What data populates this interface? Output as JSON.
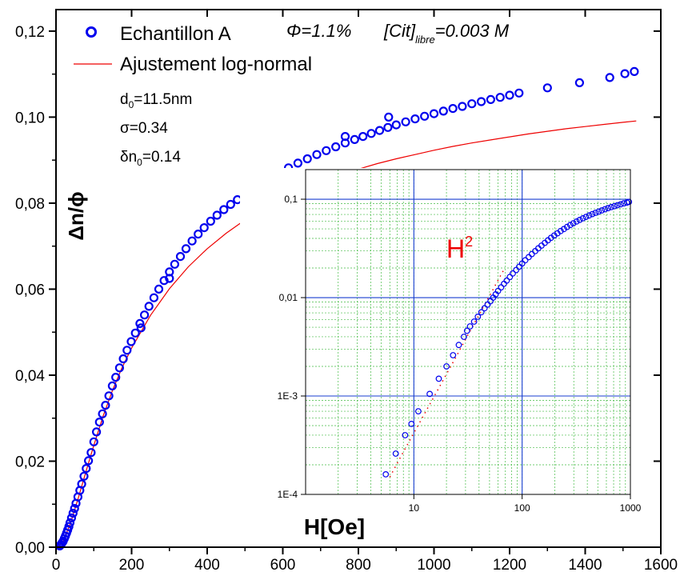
{
  "chart_data": [
    {
      "type": "scatter",
      "xlabel": "H[Oe]",
      "ylabel": "Δn/ϕ",
      "xlim": [
        0,
        1600
      ],
      "ylim": [
        0,
        0.125
      ],
      "x_ticks": [
        {
          "v": 0,
          "label": "0"
        },
        {
          "v": 200,
          "label": "200"
        },
        {
          "v": 400,
          "label": "400"
        },
        {
          "v": 600,
          "label": "600"
        },
        {
          "v": 800,
          "label": "800"
        },
        {
          "v": 1000,
          "label": "1000"
        },
        {
          "v": 1200,
          "label": "1200"
        },
        {
          "v": 1400,
          "label": "1400"
        },
        {
          "v": 1600,
          "label": "1600"
        }
      ],
      "y_ticks": [
        {
          "v": 0,
          "label": "0,00"
        },
        {
          "v": 0.02,
          "label": "0,02"
        },
        {
          "v": 0.04,
          "label": "0,04"
        },
        {
          "v": 0.06,
          "label": "0,06"
        },
        {
          "v": 0.08,
          "label": "0,08"
        },
        {
          "v": 0.1,
          "label": "0,10"
        },
        {
          "v": 0.12,
          "label": "0,12"
        }
      ],
      "legend": {
        "placement": "top-left",
        "entries": [
          "Echantillon A",
          "Ajustement log-normal"
        ]
      },
      "annotations": {
        "phi": "Φ=1.1%",
        "cit_prefix": "[Cit]",
        "cit_sub": "libre",
        "cit_suffix": "=0.003 M",
        "d0_main": "d",
        "d0_sub": "0",
        "d0_value": "=11.5nm",
        "sigma": "σ=0.34",
        "dn0_main": "δn",
        "dn0_sub": "0",
        "dn0_value": "=0.14"
      },
      "series": [
        {
          "name": "Echantillon A",
          "color": "#0000ee",
          "x": [
            10,
            13,
            16,
            19,
            22,
            25,
            28,
            31,
            34,
            37,
            41,
            45,
            49,
            53,
            58,
            63,
            68,
            74,
            80,
            86,
            93,
            100,
            107,
            115,
            123,
            131,
            140,
            149,
            158,
            168,
            178,
            188,
            199,
            210,
            222,
            234,
            246,
            259,
            272,
            286,
            300,
            314,
            329,
            344,
            360,
            376,
            392,
            409,
            426,
            444,
            462,
            480,
            499,
            518,
            540,
            565,
            590,
            615,
            640,
            665,
            690,
            715,
            740,
            765,
            790,
            812,
            834,
            856,
            878,
            900,
            925,
            950,
            975,
            1000,
            1025,
            1050,
            1075,
            1100,
            1125,
            1150,
            1175,
            1200,
            1225,
            1300,
            1385,
            1465,
            1505,
            1530,
            765,
            880,
            225,
            300
          ],
          "y": [
            0.0003,
            0.0006,
            0.001,
            0.0014,
            0.002,
            0.0026,
            0.0033,
            0.004,
            0.0048,
            0.0057,
            0.0068,
            0.0079,
            0.009,
            0.0102,
            0.0117,
            0.0132,
            0.0147,
            0.0165,
            0.0183,
            0.0201,
            0.022,
            0.0245,
            0.0268,
            0.0291,
            0.031,
            0.033,
            0.0352,
            0.0375,
            0.0395,
            0.0417,
            0.0438,
            0.0458,
            0.0478,
            0.0498,
            0.052,
            0.054,
            0.056,
            0.058,
            0.06,
            0.062,
            0.064,
            0.0658,
            0.0676,
            0.0694,
            0.0712,
            0.0728,
            0.0743,
            0.0758,
            0.0772,
            0.0785,
            0.0797,
            0.0808,
            0.082,
            0.0831,
            0.0845,
            0.0858,
            0.087,
            0.0882,
            0.0893,
            0.0903,
            0.0913,
            0.0922,
            0.0931,
            0.094,
            0.0948,
            0.0955,
            0.0962,
            0.0969,
            0.0976,
            0.0982,
            0.0989,
            0.0996,
            0.1002,
            0.1008,
            0.1014,
            0.102,
            0.1025,
            0.1031,
            0.1036,
            0.1041,
            0.1046,
            0.1051,
            0.1056,
            0.1068,
            0.108,
            0.1092,
            0.1101,
            0.1106,
            0.0955,
            0.1,
            0.051,
            0.0625
          ]
        },
        {
          "name": "Ajustement log-normal",
          "color": "#ee0000",
          "x": [
            5,
            20,
            40,
            60,
            80,
            100,
            125,
            150,
            175,
            200,
            250,
            300,
            350,
            400,
            450,
            500,
            550,
            600,
            650,
            700,
            750,
            800,
            850,
            900,
            950,
            1000,
            1050,
            1100,
            1150,
            1200,
            1250,
            1300,
            1350,
            1400,
            1450,
            1500,
            1535
          ],
          "y": [
            0.0001,
            0.0015,
            0.006,
            0.0117,
            0.0178,
            0.0237,
            0.0306,
            0.0366,
            0.0418,
            0.0463,
            0.0539,
            0.0601,
            0.0652,
            0.0694,
            0.073,
            0.0761,
            0.0788,
            0.0811,
            0.0831,
            0.0849,
            0.0865,
            0.0879,
            0.0892,
            0.0903,
            0.0913,
            0.0923,
            0.0932,
            0.094,
            0.0947,
            0.0954,
            0.0961,
            0.0967,
            0.0973,
            0.0978,
            0.0983,
            0.0988,
            0.0991
          ]
        }
      ]
    },
    {
      "type": "scatter",
      "xlabel": "H[Oe]",
      "x_scale": "log",
      "y_scale": "log",
      "xlim": [
        1,
        1000
      ],
      "ylim": [
        0.0001,
        0.2
      ],
      "grid": true,
      "x_ticks": [
        {
          "v": 10,
          "label": "10"
        },
        {
          "v": 100,
          "label": "100"
        },
        {
          "v": 1000,
          "label": "1000"
        }
      ],
      "y_ticks": [
        {
          "v": 0.0001,
          "label": "1E-4"
        },
        {
          "v": 0.001,
          "label": "1E-3"
        },
        {
          "v": 0.01,
          "label": "0,01"
        },
        {
          "v": 0.1,
          "label": "0,1"
        }
      ],
      "annotations": {
        "h2_main": "H",
        "h2_sup": "2"
      },
      "series": [
        {
          "color": "#0000ee",
          "x": [
            5.5,
            6.8,
            8.3,
            9.5,
            11,
            14,
            17,
            20,
            23,
            26,
            29,
            31,
            33,
            36,
            39,
            42,
            45,
            48,
            51,
            54,
            57,
            60,
            64,
            68,
            72,
            77,
            82,
            88,
            94,
            100,
            107,
            115,
            123,
            132,
            141,
            151,
            162,
            173,
            185,
            198,
            212,
            227,
            243,
            260,
            278,
            297,
            318,
            340,
            364,
            389,
            416,
            445,
            476,
            509,
            544,
            582,
            622,
            665,
            711,
            760,
            813,
            869,
            929,
            970
          ],
          "y": [
            0.00016,
            0.00026,
            0.0004,
            0.00052,
            0.0007,
            0.00105,
            0.0015,
            0.002,
            0.0026,
            0.0033,
            0.004,
            0.0046,
            0.0051,
            0.0057,
            0.0064,
            0.0071,
            0.0078,
            0.0085,
            0.0092,
            0.01,
            0.0108,
            0.0117,
            0.0127,
            0.0138,
            0.0149,
            0.0162,
            0.0176,
            0.0191,
            0.0206,
            0.0222,
            0.024,
            0.0258,
            0.0277,
            0.0297,
            0.0317,
            0.0338,
            0.036,
            0.0382,
            0.0405,
            0.0428,
            0.0451,
            0.0475,
            0.0498,
            0.0522,
            0.0546,
            0.0569,
            0.0593,
            0.0616,
            0.0639,
            0.0662,
            0.0684,
            0.0706,
            0.0728,
            0.0749,
            0.077,
            0.0791,
            0.0811,
            0.0831,
            0.085,
            0.0869,
            0.0888,
            0.0907,
            0.0925,
            0.0938
          ]
        },
        {
          "name": "H2",
          "color": "#ee0000",
          "x": [
            6,
            8,
            10,
            13,
            16,
            20,
            25,
            32,
            40,
            50,
            63,
            68
          ],
          "y": [
            0.00015,
            0.00027,
            0.00042,
            0.00071,
            0.00107,
            0.00167,
            0.0026,
            0.0043,
            0.0067,
            0.0104,
            0.0166,
            0.0193
          ]
        }
      ]
    }
  ]
}
